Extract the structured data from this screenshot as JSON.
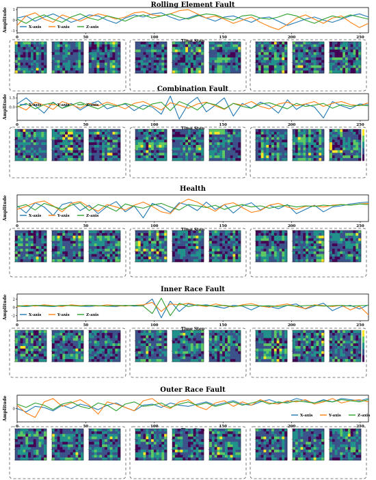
{
  "figure": {
    "x_ticks": [
      "0",
      "50",
      "100",
      "150",
      "200",
      "250"
    ],
    "xlabel": "Time Step",
    "ylabel": "Amplitude",
    "legend": [
      "X-axis",
      "Y-axis",
      "Z-axis"
    ],
    "colors": {
      "x": "#1f77b4",
      "y": "#ff7f0e",
      "z": "#2ca02c"
    },
    "colormap": [
      "#440154",
      "#3b528b",
      "#21918c",
      "#5ec962",
      "#fde725"
    ]
  },
  "chart_data": [
    {
      "type": "line",
      "title": "Rolling Element Fault",
      "xlabel": "Time Step",
      "ylabel": "Amplitude",
      "xlim": [
        0,
        256
      ],
      "ylim": [
        -1.2,
        1.2
      ],
      "y_ticks": [
        "1",
        "0",
        "-1"
      ],
      "legend_position": "lower-left",
      "series": [
        {
          "name": "X-axis",
          "values": [
            0.2,
            0.4,
            -0.1,
            0.3,
            0.6,
            0.2,
            -0.2,
            0.1,
            0.5,
            0.4,
            0.0,
            -0.3,
            0.2,
            0.5,
            0.3,
            0.6,
            0.7,
            0.3,
            0.0,
            0.2,
            0.5,
            0.2,
            -0.1,
            0.3,
            0.4,
            0.1,
            -0.2,
            0.2,
            0.3,
            -0.1,
            -0.5,
            -0.2,
            0.1,
            0.3,
            0.0,
            -0.2,
            0.1,
            0.4,
            0.6,
            0.3
          ]
        },
        {
          "name": "Y-axis",
          "values": [
            -0.5,
            0.4,
            0.7,
            0.1,
            -0.2,
            0.5,
            0.2,
            -0.1,
            0.3,
            0.6,
            0.4,
            0.1,
            0.3,
            0.7,
            0.8,
            0.5,
            0.4,
            0.6,
            0.9,
            1.0,
            0.6,
            0.2,
            0.4,
            0.1,
            -0.3,
            0.0,
            0.3,
            -0.2,
            -0.6,
            -0.9,
            -0.4,
            0.2,
            0.5,
            0.1,
            -0.3,
            0.2,
            0.4,
            -0.2,
            -0.7,
            -0.3
          ]
        },
        {
          "name": "Z-axis",
          "values": [
            0.1,
            -0.3,
            0.2,
            0.5,
            0.1,
            -0.2,
            0.3,
            0.6,
            0.2,
            0.0,
            0.4,
            0.2,
            -0.1,
            0.3,
            0.5,
            0.2,
            0.4,
            0.6,
            0.3,
            0.1,
            0.4,
            0.6,
            0.5,
            0.2,
            0.0,
            0.4,
            0.5,
            0.2,
            0.1,
            0.3,
            0.6,
            0.4,
            0.0,
            -0.3,
            0.1,
            0.4,
            0.2,
            0.5,
            0.3,
            0.1
          ]
        }
      ]
    },
    {
      "type": "line",
      "title": "Combination Fault",
      "xlabel": "Time Step",
      "ylabel": "Amplitude",
      "xlim": [
        0,
        256
      ],
      "ylim": [
        -2.2,
        2.2
      ],
      "y_ticks": [
        "1.5",
        "0.0"
      ],
      "legend_position": "upper-left",
      "series": [
        {
          "name": "X-axis",
          "values": [
            0.5,
            1.5,
            0.2,
            -1.0,
            0.8,
            -0.2,
            0.6,
            -0.5,
            0.4,
            1.0,
            -0.3,
            0.2,
            0.5,
            -0.6,
            0.3,
            0.0,
            -1.2,
            1.8,
            -2.0,
            0.5,
            1.6,
            -0.8,
            0.3,
            1.5,
            -1.5,
            0.6,
            -0.2,
            0.8,
            0.2,
            -1.0,
            1.2,
            -0.4,
            0.5,
            0.0,
            -1.8,
            0.9,
            0.2,
            -0.3,
            0.5,
            0.4
          ]
        },
        {
          "name": "Y-axis",
          "values": [
            0.2,
            -0.5,
            0.8,
            0.3,
            -0.4,
            0.9,
            0.4,
            -0.2,
            0.6,
            0.2,
            0.8,
            0.3,
            -0.3,
            0.6,
            0.9,
            0.2,
            -0.5,
            0.7,
            0.3,
            -0.2,
            0.5,
            0.8,
            0.2,
            -0.4,
            0.6,
            0.3,
            0.9,
            0.1,
            -0.3,
            0.5,
            0.8,
            0.2,
            0.5,
            0.9,
            0.1,
            0.6,
            0.9,
            0.4,
            0.2,
            0.7
          ]
        },
        {
          "name": "Z-axis",
          "values": [
            0.0,
            0.6,
            -0.3,
            0.4,
            0.7,
            -0.2,
            0.3,
            0.8,
            0.2,
            -0.3,
            0.5,
            0.1,
            0.6,
            0.2,
            -0.4,
            0.5,
            0.8,
            -0.6,
            0.9,
            0.3,
            -0.5,
            0.7,
            0.4,
            -0.3,
            0.6,
            0.1,
            -0.2,
            0.5,
            0.7,
            0.2,
            -0.3,
            0.6,
            0.1,
            0.3,
            0.6,
            -0.2,
            0.4,
            0.1,
            0.3,
            0.2
          ]
        }
      ]
    },
    {
      "type": "line",
      "title": "Health",
      "xlabel": "Time Step",
      "ylabel": "Amplitude",
      "xlim": [
        0,
        256
      ],
      "ylim": [
        -2.2,
        2.2
      ],
      "legend_position": "lower-left",
      "series": [
        {
          "name": "X-axis",
          "values": [
            0.4,
            -0.8,
            0.9,
            0.2,
            -1.2,
            0.6,
            1.0,
            -0.4,
            0.5,
            -0.9,
            0.3,
            1.1,
            -0.6,
            0.4,
            -1.6,
            0.8,
            0.2,
            -0.7,
            0.9,
            0.5,
            -0.4,
            1.0,
            -0.2,
            0.6,
            -0.8,
            0.4,
            0.9,
            -0.3,
            0.5,
            -0.1,
            0.6,
            -0.9,
            -0.2,
            0.5,
            -0.6,
            0.2,
            0.4,
            0.7,
            0.9,
            1.0
          ]
        },
        {
          "name": "Y-axis",
          "values": [
            -0.2,
            0.3,
            0.9,
            1.2,
            0.4,
            -0.6,
            0.8,
            1.1,
            0.2,
            -0.5,
            0.6,
            0.2,
            -0.3,
            0.5,
            1.0,
            0.3,
            -0.6,
            -0.9,
            0.7,
            1.5,
            1.0,
            0.2,
            -0.5,
            0.6,
            0.9,
            0.1,
            -0.7,
            -0.4,
            0.5,
            0.8,
            0.2,
            -0.2,
            0.3,
            0.4,
            0.2,
            0.5,
            0.6,
            0.5,
            0.7,
            0.8
          ]
        },
        {
          "name": "Z-axis",
          "values": [
            0.2,
            0.6,
            -0.3,
            0.8,
            0.3,
            -0.2,
            0.5,
            0.9,
            -0.4,
            0.6,
            0.2,
            -0.5,
            0.7,
            0.3,
            0.0,
            0.5,
            0.8,
            0.2,
            -0.3,
            0.6,
            0.4,
            0.1,
            0.5,
            -0.2,
            0.3,
            0.6,
            0.2,
            0.4,
            0.0,
            0.3,
            0.5,
            0.2,
            0.4,
            0.3,
            0.5,
            0.4,
            0.6,
            0.5,
            0.7,
            0.6
          ]
        }
      ]
    },
    {
      "type": "line",
      "title": "Inner Race Fault",
      "xlabel": "Time Step",
      "ylabel": "Amplitude",
      "xlim": [
        0,
        256
      ],
      "ylim": [
        -3.2,
        3.2
      ],
      "y_ticks": [
        "2",
        "0",
        "-2"
      ],
      "legend_position": "lower-left",
      "series": [
        {
          "name": "X-axis",
          "values": [
            0.3,
            0.2,
            0.4,
            0.3,
            0.2,
            0.4,
            0.5,
            0.3,
            0.2,
            0.4,
            0.3,
            0.2,
            0.5,
            0.3,
            0.4,
            2.0,
            -2.5,
            1.5,
            -1.0,
            0.8,
            0.4,
            0.6,
            0.2,
            -0.2,
            0.5,
            0.3,
            -0.6,
            0.4,
            0.2,
            -0.3,
            0.5,
            0.8,
            -0.4,
            0.3,
            1.0,
            -0.8,
            0.2,
            0.5,
            -0.4,
            0.6
          ]
        },
        {
          "name": "Y-axis",
          "values": [
            0.2,
            0.5,
            0.3,
            0.6,
            0.4,
            0.2,
            0.6,
            0.4,
            0.5,
            0.3,
            0.6,
            0.4,
            0.3,
            0.5,
            0.6,
            1.2,
            -1.0,
            0.8,
            0.6,
            1.0,
            0.5,
            0.2,
            0.8,
            0.4,
            0.1,
            0.6,
            0.9,
            0.3,
            0.0,
            0.5,
            0.8,
            0.2,
            -0.3,
            0.6,
            0.4,
            0.2,
            0.5,
            -0.6,
            0.3,
            -1.8
          ]
        },
        {
          "name": "Z-axis",
          "values": [
            0.4,
            0.3,
            0.5,
            0.4,
            0.3,
            0.5,
            0.4,
            0.3,
            0.5,
            0.4,
            0.3,
            0.5,
            0.4,
            0.5,
            0.3,
            -1.5,
            2.2,
            -2.0,
            1.0,
            0.2,
            0.6,
            0.4,
            0.3,
            0.5,
            0.2,
            0.4,
            0.5,
            0.3,
            0.4,
            0.2,
            0.5,
            0.3,
            0.4,
            0.5,
            0.3,
            0.4,
            0.5,
            0.3,
            0.4,
            0.5
          ]
        }
      ]
    },
    {
      "type": "line",
      "title": "Outer Race Fault",
      "xlabel": "Time Step",
      "ylabel": "Amplitude",
      "xlim": [
        0,
        256
      ],
      "ylim": [
        -1.2,
        1.2
      ],
      "y_ticks": [
        "0"
      ],
      "legend_position": "lower-right",
      "series": [
        {
          "name": "X-axis",
          "values": [
            0.0,
            -0.3,
            0.2,
            0.1,
            -0.2,
            0.3,
            0.0,
            0.4,
            0.2,
            -0.1,
            0.3,
            0.5,
            0.1,
            -0.2,
            0.3,
            0.4,
            0.1,
            0.5,
            0.3,
            0.2,
            0.4,
            0.6,
            0.3,
            0.5,
            0.7,
            0.4,
            0.3,
            0.6,
            0.8,
            0.5,
            0.6,
            0.9,
            0.7,
            0.5,
            0.8,
            0.6,
            0.9,
            0.8,
            0.7,
            0.9
          ]
        },
        {
          "name": "Y-axis",
          "values": [
            0.3,
            -0.4,
            -0.8,
            0.6,
            0.9,
            0.2,
            0.5,
            0.8,
            0.3,
            -0.5,
            0.6,
            0.4,
            0.1,
            -0.2,
            0.7,
            0.9,
            0.3,
            0.0,
            0.6,
            0.8,
            0.2,
            -0.1,
            0.5,
            0.7,
            0.2,
            0.6,
            0.3,
            0.8,
            0.5,
            0.4,
            0.7,
            0.6,
            0.8,
            0.4,
            0.6,
            0.9,
            0.5,
            0.7,
            0.8,
            0.6
          ]
        },
        {
          "name": "Z-axis",
          "values": [
            0.4,
            0.1,
            0.5,
            0.3,
            -0.1,
            0.4,
            0.6,
            0.2,
            0.0,
            0.5,
            0.3,
            -0.2,
            0.4,
            0.6,
            0.2,
            0.3,
            0.5,
            0.1,
            0.4,
            0.6,
            0.3,
            0.5,
            0.2,
            0.4,
            0.6,
            0.3,
            0.5,
            0.7,
            0.4,
            0.6,
            0.5,
            0.7,
            0.6,
            0.5,
            0.7,
            0.6,
            0.8,
            0.7,
            0.6,
            0.8
          ]
        }
      ]
    }
  ]
}
